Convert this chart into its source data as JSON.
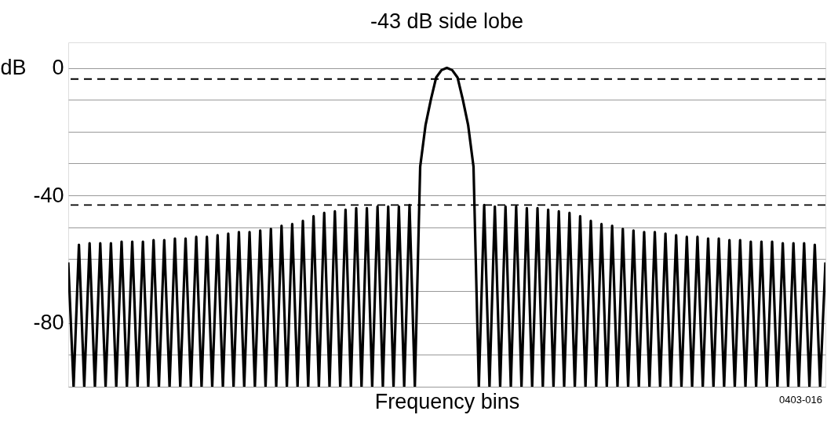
{
  "chart_data": {
    "type": "line",
    "title": "-43 dB side lobe",
    "xlabel": "Frequency bins",
    "ylabel": "dB",
    "annotations": [
      "0403-016"
    ],
    "categories": [
      null,
      null,
      null,
      null,
      null,
      null,
      null,
      null,
      null,
      null,
      null,
      null,
      null,
      null,
      null,
      null,
      null,
      null,
      null,
      null,
      null,
      null,
      null,
      null,
      null,
      null,
      null,
      null,
      null,
      null,
      null,
      null,
      null,
      null,
      null,
      null,
      null,
      null,
      null,
      null,
      null,
      null,
      null,
      null,
      null,
      null,
      null,
      null,
      null,
      null,
      null,
      null,
      null,
      null,
      null,
      null,
      null,
      null,
      null,
      null,
      null,
      null,
      null,
      null,
      null,
      null,
      null,
      null,
      null,
      null,
      null,
      null,
      null,
      null,
      null,
      null,
      null,
      null,
      null,
      null,
      null,
      null,
      null,
      null,
      null,
      null,
      null,
      null,
      null,
      null,
      null,
      null,
      null,
      null,
      null,
      null,
      null,
      null,
      null,
      null,
      null,
      null,
      null,
      null,
      null,
      null,
      null,
      null,
      null,
      null,
      null,
      null,
      null,
      null,
      null,
      null,
      null,
      null,
      null,
      null,
      null,
      null,
      null,
      null,
      null,
      null,
      null,
      null,
      null,
      null,
      null,
      null,
      null,
      null,
      null,
      null,
      null,
      null,
      null,
      null,
      null,
      null,
      null
    ],
    "ylim": [
      -100,
      8
    ],
    "yticks": [
      {
        "value": -100,
        "label": null
      },
      {
        "value": -90,
        "label": null
      },
      -80,
      {
        "value": -70,
        "label": null
      },
      {
        "value": -60,
        "label": null
      },
      {
        "value": -50,
        "label": null
      },
      -40,
      {
        "value": -30,
        "label": null
      },
      {
        "value": -20,
        "label": null
      },
      {
        "value": -10,
        "label": null
      },
      0
    ],
    "tick_labels": "y",
    "grid": "y",
    "line_style": "solid",
    "ref_lines": [
      {
        "axis": "y",
        "value": -3.5,
        "color": "#000000",
        "line_style": "dashed"
      },
      {
        "axis": "y",
        "value": -43,
        "color": "#000000",
        "line_style": "dashed"
      }
    ],
    "series": [
      {
        "color": "#000000",
        "values": [
          -61,
          -100,
          -55.5,
          -100,
          -55,
          -100,
          -55,
          -100,
          -55,
          -100,
          -54.5,
          -100,
          -54.5,
          -100,
          -54.5,
          -100,
          -54,
          -100,
          -54,
          -100,
          -53.5,
          -100,
          -53.5,
          -100,
          -53,
          -100,
          -53,
          -100,
          -52.5,
          -100,
          -52,
          -100,
          -51.5,
          -100,
          -51.5,
          -100,
          -51,
          -100,
          -50.5,
          -100,
          -49.5,
          -100,
          -49,
          -100,
          -48,
          -100,
          -46.5,
          -100,
          -45.5,
          -100,
          -45,
          -100,
          -44.5,
          -100,
          -44,
          -100,
          -44,
          -100,
          -43.5,
          -100,
          -43.5,
          -100,
          -43.5,
          -100,
          -43,
          -100,
          -31,
          -18,
          -10,
          -3,
          -0.7,
          0,
          -0.7,
          -3,
          -10,
          -18,
          -31,
          -100,
          -43,
          -100,
          -43.5,
          -100,
          -43.5,
          -100,
          -43.5,
          -100,
          -44,
          -100,
          -44,
          -100,
          -44.5,
          -100,
          -45,
          -100,
          -45.5,
          -100,
          -46.5,
          -100,
          -48,
          -100,
          -49,
          -100,
          -49.5,
          -100,
          -50.5,
          -100,
          -51,
          -100,
          -51.5,
          -100,
          -51.5,
          -100,
          -52,
          -100,
          -52.5,
          -100,
          -53,
          -100,
          -53,
          -100,
          -53.5,
          -100,
          -53.5,
          -100,
          -54,
          -100,
          -54,
          -100,
          -54.5,
          -100,
          -54.5,
          -100,
          -54.5,
          -100,
          -55,
          -100,
          -55,
          -100,
          -55,
          -100,
          -55.5,
          -100,
          -61
        ]
      }
    ]
  }
}
